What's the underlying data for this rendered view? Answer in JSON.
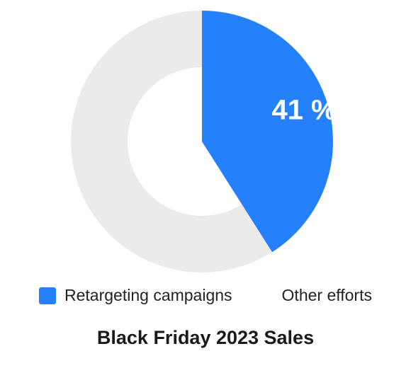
{
  "chart_data": {
    "type": "pie",
    "subtype": "donut",
    "title": "Black Friday 2023 Sales",
    "categories": [
      "Retargeting campaigns",
      "Other efforts"
    ],
    "values": [
      41,
      59
    ],
    "unit": "%",
    "slice_labels": [
      "41 %",
      ""
    ],
    "colors": [
      "#2580fb",
      "#ebebeb"
    ],
    "legend_swatch_colors": [
      "#2580fb",
      "#ffffff"
    ],
    "legend_position": "bottom"
  }
}
